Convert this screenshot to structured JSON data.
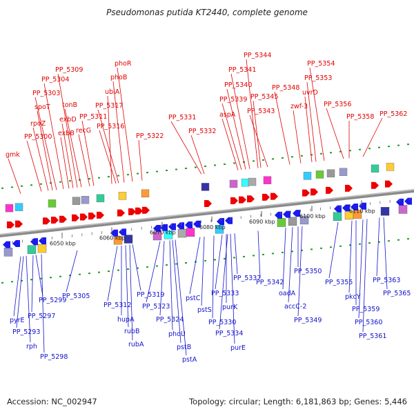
{
  "title": "Pseudomonas putida KT2440, complete genome",
  "footer": {
    "accession": "Accession: NC_002947",
    "summary": "Topology: circular; Length: 6,181,863 bp; Genes: 5,446"
  },
  "colors": {
    "forward_labels": "#e00000",
    "reverse_labels": "#1010cc",
    "forward_arrow": "#ee0000",
    "reverse_arrow": "#1a1aee",
    "backbone": "#8a8a8a",
    "tick": "#228822"
  },
  "scale_ticks": [
    "6050 kbp",
    "6060 kbp",
    "6070 kbp",
    "6080 kbp",
    "6090 kbp",
    "6100 kbp",
    "6110 kbp"
  ],
  "top_labels": [
    "gmk",
    "PP_5300",
    "rpoZ",
    "spoT",
    "PP_5303",
    "PP_5304",
    "PP_5309",
    "exbB",
    "exbD",
    "tonB",
    "recG",
    "PP_5311",
    "ubiA",
    "PP_5316",
    "PP_5317",
    "phoB",
    "phoR",
    "PP_5322",
    "PP_5331",
    "PP_5332",
    "aspA",
    "PP_5339",
    "PP_5340",
    "PP_5341",
    "PP_5344",
    "PP_5345",
    "PP_5343",
    "PP_5348",
    "zwf-3",
    "uvrD",
    "PP_5353",
    "PP_5354",
    "PP_5356",
    "PP_5358",
    "PP_5362"
  ],
  "bottom_labels": [
    "pyrE",
    "PP_5293",
    "rph",
    "PP_5297",
    "PP_5299",
    "PP_5298",
    "PP_5305",
    "PP_5312",
    "hupA",
    "rubB",
    "rubA",
    "PP_5319",
    "PP_5323",
    "PP_5324",
    "phoU",
    "pstB",
    "pstA",
    "pstC",
    "pstS",
    "PP_5330",
    "PP_5333",
    "purK",
    "PP_5334",
    "purE",
    "PP_5337",
    "PP_5342",
    "oadA",
    "accC-2",
    "PP_5350",
    "PP_5349",
    "PP_5355",
    "pkcY",
    "PP_5359",
    "PP_5360",
    "PP_5361",
    "PP_5363",
    "PP_5365"
  ]
}
